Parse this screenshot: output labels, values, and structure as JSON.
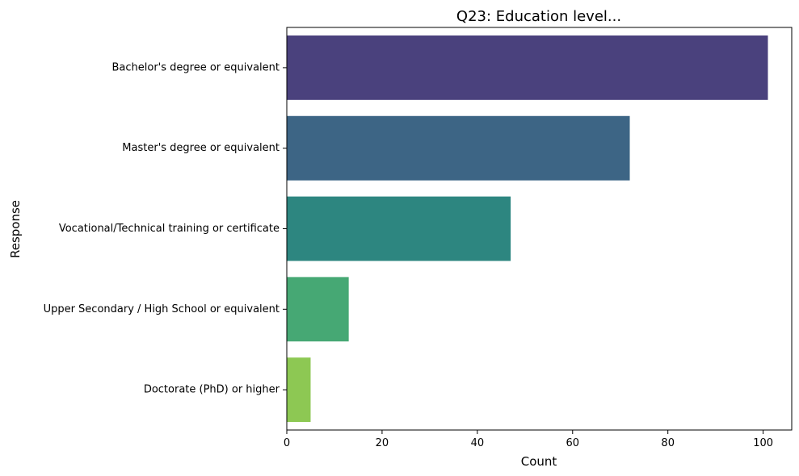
{
  "chart_data": {
    "type": "bar",
    "orientation": "horizontal",
    "title": "Q23: Education level...",
    "xlabel": "Count",
    "ylabel": "Response",
    "categories": [
      "Bachelor's degree or equivalent",
      "Master's degree or equivalent",
      "Vocational/Technical training or certificate",
      "Upper Secondary / High School or equivalent",
      "Doctorate (PhD) or higher"
    ],
    "values": [
      101,
      72,
      47,
      13,
      5
    ],
    "colors": [
      "#4a417d",
      "#3d6585",
      "#2d8680",
      "#46a874",
      "#8dc853"
    ],
    "xlim": [
      0,
      106
    ],
    "xticks": [
      0,
      20,
      40,
      60,
      80,
      100
    ],
    "grid": false,
    "legend": "none"
  }
}
